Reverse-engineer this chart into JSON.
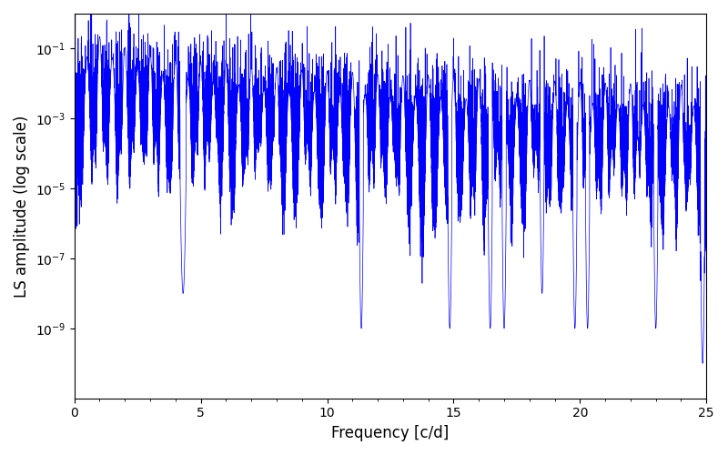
{
  "xlabel": "Frequency [c/d]",
  "ylabel": "LS amplitude (log scale)",
  "xlim": [
    0,
    25
  ],
  "ylim": [
    1e-11,
    1.0
  ],
  "line_color": "#0000ff",
  "line_width": 0.5,
  "background_color": "#ffffff",
  "figsize": [
    8.0,
    5.0
  ],
  "dpi": 100,
  "freq_max": 25.0,
  "n_points": 15000,
  "seed": 12345,
  "tick_fontsize": 10,
  "label_fontsize": 12,
  "yticks": [
    1e-09,
    1e-07,
    1e-05,
    0.001,
    0.1
  ]
}
